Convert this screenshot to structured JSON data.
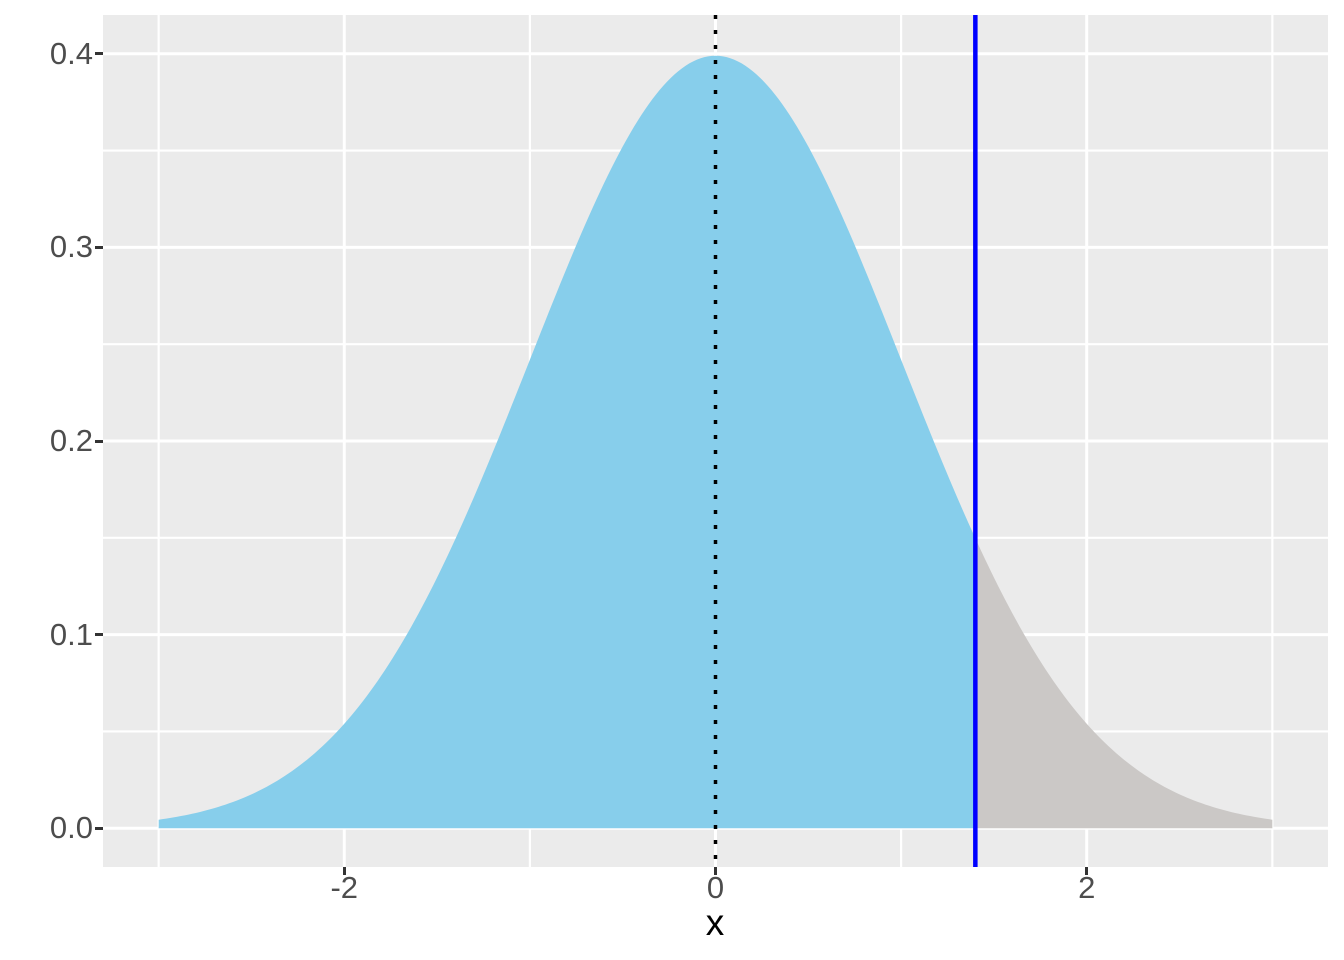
{
  "figure": {
    "background": "#FFFFFF",
    "panel_background": "#EBEBEB",
    "gridline_color": "#FFFFFF",
    "tick_label_color": "#4D4D4D",
    "tick_mark_color": "#333333"
  },
  "chart_data": {
    "type": "area",
    "title": "",
    "xlabel": "x",
    "ylabel": "",
    "xlim": [
      -3.3,
      3.3
    ],
    "ylim": [
      -0.02,
      0.42
    ],
    "x_ticks": [
      {
        "value": -2,
        "label": "-2"
      },
      {
        "value": 0,
        "label": "0"
      },
      {
        "value": 2,
        "label": "2"
      }
    ],
    "y_ticks": [
      {
        "value": 0.0,
        "label": "0.0"
      },
      {
        "value": 0.1,
        "label": "0.1"
      },
      {
        "value": 0.2,
        "label": "0.2"
      },
      {
        "value": 0.3,
        "label": "0.3"
      },
      {
        "value": 0.4,
        "label": "0.4"
      }
    ],
    "x_minor_gridlines": [
      -3,
      -1,
      1,
      3
    ],
    "y_minor_gridlines": [
      0.05,
      0.15,
      0.25,
      0.35
    ],
    "grid": true,
    "legend": "none",
    "distribution": {
      "name": "standard-normal",
      "mean": 0,
      "sd": 1,
      "x_range": [
        -3,
        3
      ]
    },
    "curve_points": [
      {
        "x": -3.0,
        "y": 0.0044
      },
      {
        "x": -2.75,
        "y": 0.0091
      },
      {
        "x": -2.5,
        "y": 0.0175
      },
      {
        "x": -2.25,
        "y": 0.0317
      },
      {
        "x": -2.0,
        "y": 0.054
      },
      {
        "x": -1.75,
        "y": 0.0863
      },
      {
        "x": -1.5,
        "y": 0.1295
      },
      {
        "x": -1.25,
        "y": 0.1826
      },
      {
        "x": -1.0,
        "y": 0.242
      },
      {
        "x": -0.75,
        "y": 0.3011
      },
      {
        "x": -0.5,
        "y": 0.3521
      },
      {
        "x": -0.25,
        "y": 0.3867
      },
      {
        "x": 0.0,
        "y": 0.3989
      },
      {
        "x": 0.25,
        "y": 0.3867
      },
      {
        "x": 0.5,
        "y": 0.3521
      },
      {
        "x": 0.75,
        "y": 0.3011
      },
      {
        "x": 1.0,
        "y": 0.242
      },
      {
        "x": 1.25,
        "y": 0.1826
      },
      {
        "x": 1.4,
        "y": 0.1497
      },
      {
        "x": 1.5,
        "y": 0.1295
      },
      {
        "x": 1.75,
        "y": 0.0863
      },
      {
        "x": 2.0,
        "y": 0.054
      },
      {
        "x": 2.25,
        "y": 0.0317
      },
      {
        "x": 2.5,
        "y": 0.0175
      },
      {
        "x": 2.75,
        "y": 0.0091
      },
      {
        "x": 3.0,
        "y": 0.0044
      }
    ],
    "regions": [
      {
        "name": "density-area-body",
        "from": -3,
        "to": 1.4,
        "fill": "#87CEEB"
      },
      {
        "name": "density-area-upper-tail",
        "from": 1.4,
        "to": 3,
        "fill": "#CBC8C6"
      }
    ],
    "reference_lines": [
      {
        "name": "mean-dotted-line",
        "x": 0,
        "style": "dotted",
        "color": "#000000",
        "width": 3.5
      },
      {
        "name": "cutoff-line",
        "x": 1.4,
        "style": "solid",
        "color": "#0000FF",
        "width": 4.5
      }
    ]
  }
}
